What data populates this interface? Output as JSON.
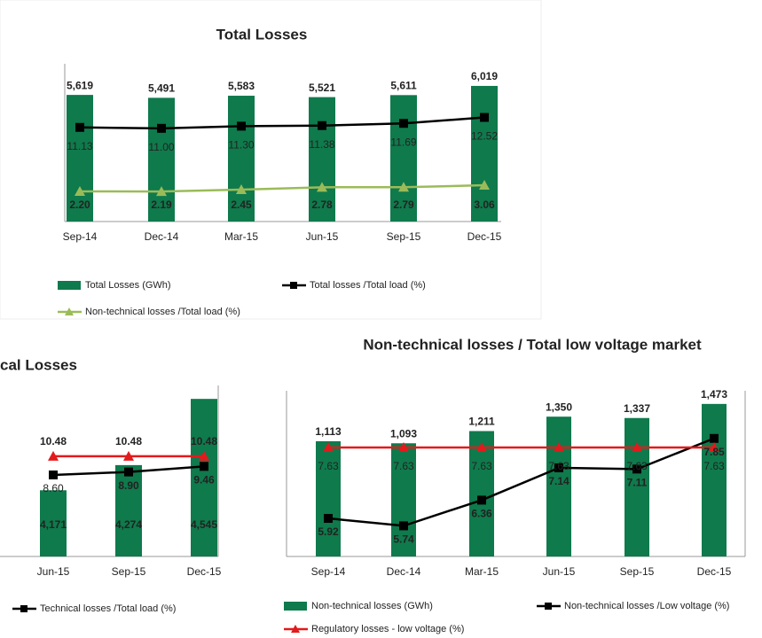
{
  "chart_data": [
    {
      "type": "bar",
      "title": "Total Losses",
      "categories": [
        "Sep-14",
        "Dec-14",
        "Mar-15",
        "Jun-15",
        "Sep-15",
        "Dec-15"
      ],
      "ylim": [
        0,
        7000
      ],
      "y2lim": [
        -2,
        20
      ],
      "series": [
        {
          "name": "Total Losses (GWh)",
          "color": "#0f7a4c",
          "values": [
            5619,
            5491,
            5583,
            5521,
            5611,
            6019
          ],
          "value_labels": [
            "5,619",
            "5,491",
            "5,583",
            "5,521",
            "5,611",
            "6,019"
          ]
        },
        {
          "name": "Total losses /Total load (%)",
          "color": "#000000",
          "marker": "square",
          "axis": "y2",
          "values": [
            11.13,
            11.0,
            11.3,
            11.38,
            11.69,
            12.52
          ],
          "value_labels": [
            "11.13",
            "11.00",
            "11.30",
            "11.38",
            "11.69",
            "12.52"
          ]
        },
        {
          "name": "Non-technical losses /Total load (%)",
          "color": "#9bbb59",
          "marker": "triangle",
          "axis": "y2",
          "values": [
            2.2,
            2.19,
            2.45,
            2.78,
            2.79,
            3.06
          ],
          "value_labels": [
            "2.20",
            "2.19",
            "2.45",
            "2.78",
            "2.79",
            "3.06"
          ]
        }
      ]
    },
    {
      "type": "bar",
      "title": "cal Losses",
      "categories": [
        "Jun-15",
        "Sep-15",
        "Dec-15"
      ],
      "ylim": [
        3900,
        4600
      ],
      "y2lim": [
        0.4,
        17.6
      ],
      "series": [
        {
          "name": null,
          "color": "#0f7a4c",
          "values": [
            4171,
            4274,
            4545
          ],
          "value_labels": [
            "4,171",
            "4,274",
            "4,545"
          ]
        },
        {
          "name": "Technical losses /Total load (%)",
          "color": "#000000",
          "marker": "square",
          "axis": "y2",
          "values": [
            8.6,
            8.9,
            9.46
          ],
          "value_labels": [
            "8.60",
            "8.90",
            "9.46"
          ]
        },
        {
          "name": null,
          "color": "#e31a1c",
          "marker": "triangle",
          "axis": "y2",
          "values": [
            10.48,
            10.48,
            10.48
          ]
        }
      ]
    },
    {
      "type": "bar",
      "title": "Non-technical losses / Total low voltage market",
      "categories": [
        "Sep-14",
        "Dec-14",
        "Mar-15",
        "Jun-15",
        "Sep-15",
        "Dec-15"
      ],
      "ylim": [
        0,
        1600
      ],
      "y2lim": [
        5,
        9
      ],
      "series": [
        {
          "name": "Non-technical losses (GWh)",
          "color": "#0f7a4c",
          "values": [
            1113,
            1093,
            1211,
            1350,
            1337,
            1473
          ],
          "value_labels": [
            "1,113",
            "1,093",
            "1,211",
            "1,350",
            "1,337",
            "1,473"
          ]
        },
        {
          "name": "Non-technical losses /Low voltage (%)",
          "color": "#000000",
          "marker": "square",
          "axis": "y2",
          "values": [
            5.92,
            5.74,
            6.36,
            7.14,
            7.11,
            7.85
          ]
        },
        {
          "name": "Regulatory losses - low voltage (%)",
          "color": "#e31a1c",
          "marker": "triangle",
          "axis": "y2",
          "values": [
            7.63,
            7.63,
            7.63,
            7.63,
            7.63,
            7.63
          ]
        }
      ]
    }
  ]
}
